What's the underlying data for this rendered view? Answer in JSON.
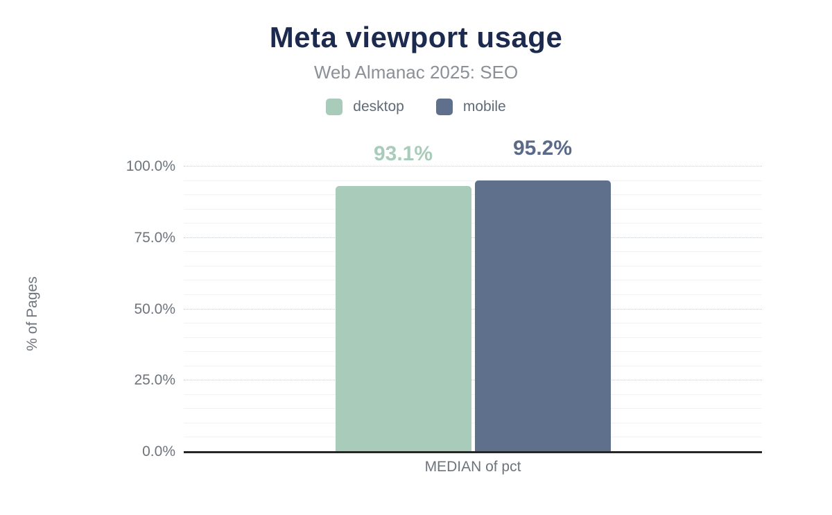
{
  "header": {
    "title": "Meta viewport usage",
    "subtitle": "Web Almanac 2025: SEO",
    "title_color": "#1b2a4e",
    "subtitle_color": "#8a9096"
  },
  "legend": {
    "position": "top",
    "label_color": "#5d6b78",
    "items": [
      {
        "label": "desktop",
        "color": "#a8cbba"
      },
      {
        "label": "mobile",
        "color": "#5f708d"
      }
    ]
  },
  "chart_data": {
    "type": "bar",
    "title": "Meta viewport usage",
    "subtitle": "Web Almanac 2025: SEO",
    "categories": [
      "MEDIAN of pct"
    ],
    "series": [
      {
        "name": "desktop",
        "values": [
          93.1
        ],
        "data_label": "93.1%",
        "color": "#a8cbba",
        "label_color": "#a8cbba"
      },
      {
        "name": "mobile",
        "values": [
          95.2
        ],
        "data_label": "95.2%",
        "color": "#5f708d",
        "label_color": "#5a6a88"
      }
    ],
    "xlabel": "MEDIAN of pct",
    "ylabel": "% of Pages",
    "ylim": [
      0,
      100
    ],
    "y_ticks": [
      {
        "value": 0,
        "label": "0.0%"
      },
      {
        "value": 25,
        "label": "25.0%"
      },
      {
        "value": 50,
        "label": "50.0%"
      },
      {
        "value": 75,
        "label": "75.0%"
      },
      {
        "value": 100,
        "label": "100.0%"
      }
    ],
    "minor_step": 5,
    "major_step": 25,
    "grid": {
      "major_style": "dotted",
      "minor_style": "solid",
      "major_color": "#c9ced2",
      "minor_color": "#f1f2f4"
    },
    "axis_line_color": "#262626",
    "tick_label_color": "#6e747c",
    "legend_position": "top"
  }
}
